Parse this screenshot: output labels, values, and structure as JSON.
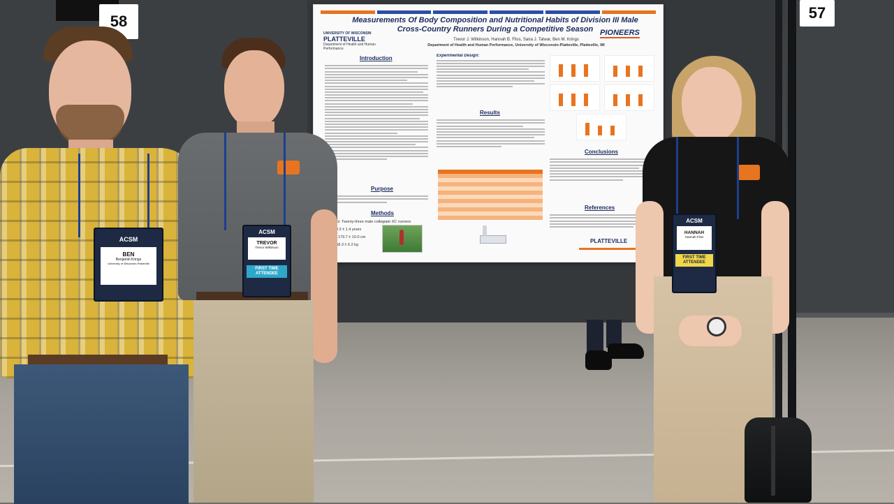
{
  "booth_numbers": {
    "left": "58",
    "right": "57"
  },
  "poster": {
    "title": "Measurements Of Body Composition and Nutritional Habits of Division III Male Cross-Country Runners During a Competitive Season",
    "authors": "Trevor J. Wilkinson, Hannah B. Fliss, Saira J. Talwar, Ben M. Krings",
    "department": "Department of Health and Human Performance, University of Wisconsin-Platteville, Platteville, WI",
    "logo_top": "UNIVERSITY OF WISCONSIN",
    "logo_main": "PLATTEVILLE",
    "logo_sub": "Department of Health and Human Performance",
    "pioneers": "PIONEERS",
    "sections": {
      "introduction": "Introduction",
      "purpose": "Purpose",
      "methods": "Methods",
      "results": "Results",
      "conclusions": "Conclusions",
      "references": "References"
    },
    "design_label": "Experimental Design:",
    "subjects": "Subjects: Twenty-three male collegiate XC runners",
    "age": "Age: 19.3 ± 1.4 years",
    "height": "Height: 179.7 ± 10.0 cm",
    "mass": "Mass: 68.3 ± 6.2 kg",
    "footer_logo": "PLATTEVILLE"
  },
  "badges": [
    {
      "name": "BEN",
      "full": "Benjamin Krings",
      "org": "University of Wisconsin-Platteville",
      "logo": "ACSM"
    },
    {
      "name": "TREVOR",
      "full": "Trevor Wilkinson",
      "tag": "FIRST TIME ATTENDEE",
      "logo": "ACSM"
    },
    {
      "name": "HANNAH",
      "full": "Hannah Fliss",
      "tag": "FIRST TIME ATTENDEE",
      "logo": "ACSM"
    }
  ],
  "colors": {
    "accent_orange": "#e8741f",
    "navy": "#1a2a5c",
    "stripe_blue": "#2b4fa3"
  }
}
